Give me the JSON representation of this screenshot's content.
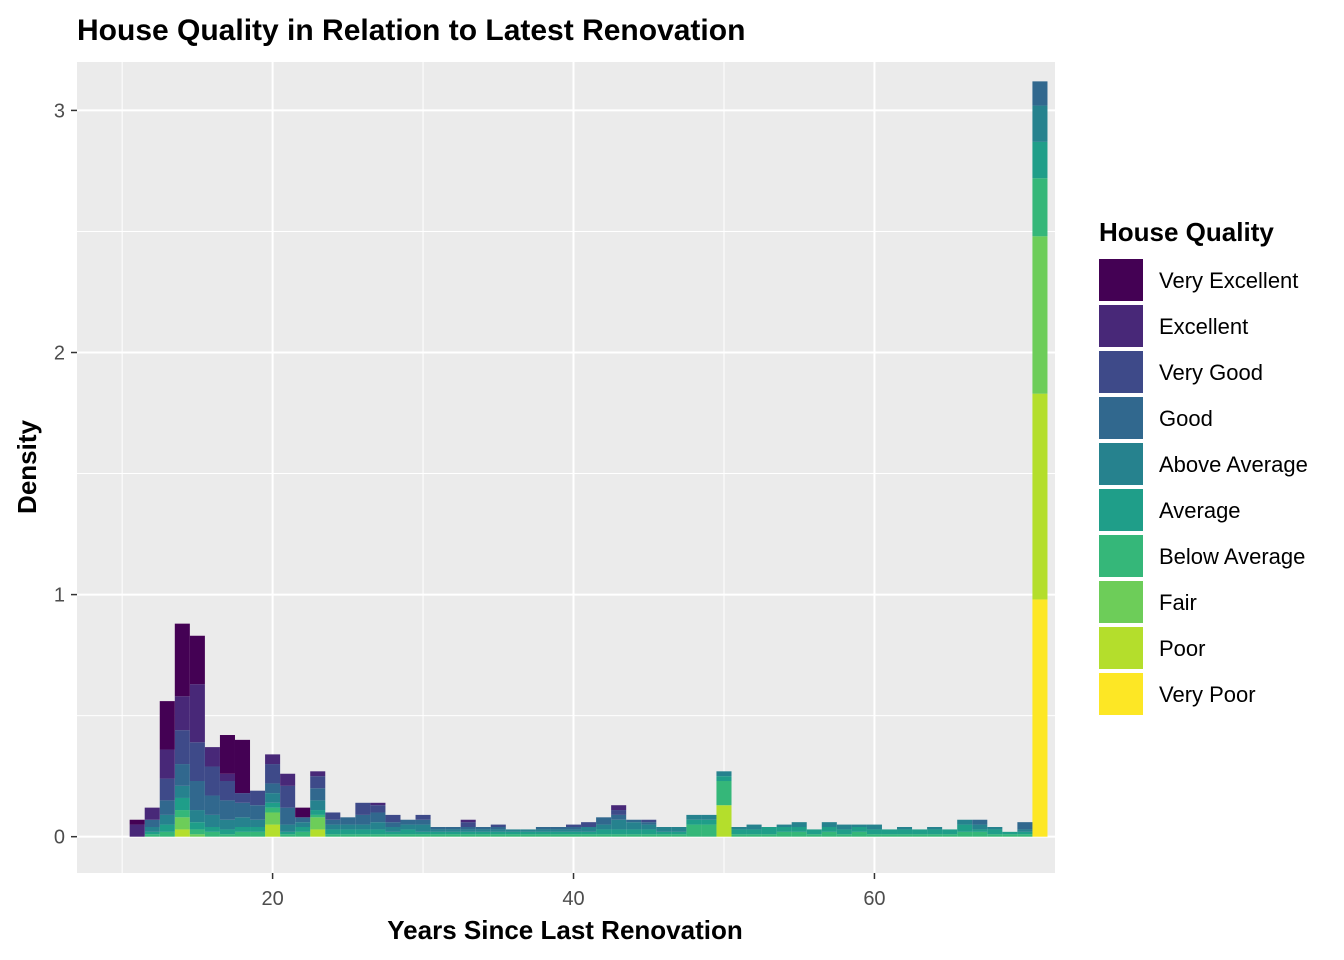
{
  "chart_data": {
    "type": "bar",
    "stacking": "stacked",
    "title": "House Quality in Relation to Latest Renovation",
    "xlabel": "Years Since Last Renovation",
    "ylabel": "Density",
    "xlim": [
      7,
      72
    ],
    "ylim": [
      -0.15,
      3.2
    ],
    "x_ticks": [
      20,
      40,
      60
    ],
    "y_ticks": [
      0,
      1,
      2,
      3
    ],
    "bin_width": 1,
    "grid": true,
    "background": "#EBEBEB",
    "legend": {
      "title": "House Quality",
      "position": "right"
    },
    "series": [
      {
        "name": "Very Excellent",
        "color": "#440154",
        "bins": [
          [
            11,
            0.02
          ],
          [
            13,
            0.2
          ],
          [
            14,
            0.3
          ],
          [
            15,
            0.2
          ],
          [
            17,
            0.16
          ],
          [
            18,
            0.22
          ],
          [
            22,
            0.04
          ]
        ]
      },
      {
        "name": "Excellent",
        "color": "#482878",
        "bins": [
          [
            11,
            0.05
          ],
          [
            12,
            0.05
          ],
          [
            13,
            0.12
          ],
          [
            14,
            0.14
          ],
          [
            15,
            0.24
          ],
          [
            16,
            0.08
          ],
          [
            17,
            0.03
          ],
          [
            20,
            0.04
          ],
          [
            21,
            0.05
          ],
          [
            23,
            0.02
          ],
          [
            27,
            0.01
          ],
          [
            33,
            0.01
          ],
          [
            43,
            0.02
          ]
        ]
      },
      {
        "name": "Very Good",
        "color": "#3E4A89",
        "bins": [
          [
            13,
            0.09
          ],
          [
            14,
            0.14
          ],
          [
            15,
            0.16
          ],
          [
            16,
            0.12
          ],
          [
            17,
            0.08
          ],
          [
            18,
            0.04
          ],
          [
            19,
            0.06
          ],
          [
            20,
            0.08
          ],
          [
            21,
            0.09
          ],
          [
            23,
            0.05
          ],
          [
            24,
            0.03
          ],
          [
            26,
            0.05
          ],
          [
            27,
            0.03
          ],
          [
            28,
            0.03
          ],
          [
            30,
            0.02
          ],
          [
            33,
            0.02
          ],
          [
            35,
            0.01
          ],
          [
            40,
            0.01
          ],
          [
            41,
            0.02
          ],
          [
            43,
            0.02
          ],
          [
            45,
            0.01
          ]
        ]
      },
      {
        "name": "Good",
        "color": "#31688E",
        "bins": [
          [
            12,
            0.03
          ],
          [
            13,
            0.06
          ],
          [
            14,
            0.09
          ],
          [
            15,
            0.12
          ],
          [
            16,
            0.08
          ],
          [
            17,
            0.08
          ],
          [
            18,
            0.06
          ],
          [
            19,
            0.06
          ],
          [
            20,
            0.04
          ],
          [
            21,
            0.07
          ],
          [
            22,
            0.02
          ],
          [
            23,
            0.05
          ],
          [
            24,
            0.02
          ],
          [
            25,
            0.03
          ],
          [
            26,
            0.04
          ],
          [
            27,
            0.04
          ],
          [
            28,
            0.02
          ],
          [
            29,
            0.02
          ],
          [
            30,
            0.02
          ],
          [
            31,
            0.01
          ],
          [
            32,
            0.01
          ],
          [
            33,
            0.01
          ],
          [
            34,
            0.01
          ],
          [
            35,
            0.01
          ],
          [
            38,
            0.01
          ],
          [
            39,
            0.01
          ],
          [
            40,
            0.01
          ],
          [
            42,
            0.03
          ],
          [
            43,
            0.02
          ],
          [
            44,
            0.01
          ],
          [
            45,
            0.01
          ],
          [
            67,
            0.02
          ],
          [
            70,
            0.03
          ],
          [
            71,
            0.1
          ]
        ]
      },
      {
        "name": "Above Average",
        "color": "#26828E",
        "bins": [
          [
            12,
            0.02
          ],
          [
            13,
            0.04
          ],
          [
            14,
            0.05
          ],
          [
            15,
            0.05
          ],
          [
            16,
            0.05
          ],
          [
            17,
            0.04
          ],
          [
            18,
            0.04
          ],
          [
            19,
            0.03
          ],
          [
            20,
            0.04
          ],
          [
            21,
            0.03
          ],
          [
            22,
            0.02
          ],
          [
            23,
            0.04
          ],
          [
            24,
            0.02
          ],
          [
            25,
            0.02
          ],
          [
            26,
            0.02
          ],
          [
            27,
            0.03
          ],
          [
            28,
            0.02
          ],
          [
            29,
            0.02
          ],
          [
            30,
            0.03
          ],
          [
            31,
            0.01
          ],
          [
            32,
            0.01
          ],
          [
            33,
            0.01
          ],
          [
            34,
            0.01
          ],
          [
            35,
            0.01
          ],
          [
            36,
            0.01
          ],
          [
            37,
            0.01
          ],
          [
            38,
            0.01
          ],
          [
            39,
            0.01
          ],
          [
            40,
            0.01
          ],
          [
            41,
            0.02
          ],
          [
            42,
            0.02
          ],
          [
            43,
            0.04
          ],
          [
            44,
            0.03
          ],
          [
            45,
            0.02
          ],
          [
            46,
            0.02
          ],
          [
            47,
            0.02
          ],
          [
            48,
            0.02
          ],
          [
            49,
            0.02
          ],
          [
            50,
            0.02
          ],
          [
            51,
            0.01
          ],
          [
            52,
            0.02
          ],
          [
            54,
            0.01
          ],
          [
            55,
            0.02
          ],
          [
            57,
            0.02
          ],
          [
            58,
            0.02
          ],
          [
            59,
            0.01
          ],
          [
            60,
            0.02
          ],
          [
            62,
            0.01
          ],
          [
            64,
            0.01
          ],
          [
            66,
            0.02
          ],
          [
            67,
            0.02
          ],
          [
            68,
            0.01
          ],
          [
            70,
            0.01
          ],
          [
            71,
            0.15
          ]
        ]
      },
      {
        "name": "Average",
        "color": "#1F9E89",
        "bins": [
          [
            12,
            0.01
          ],
          [
            13,
            0.03
          ],
          [
            14,
            0.05
          ],
          [
            15,
            0.03
          ],
          [
            16,
            0.02
          ],
          [
            17,
            0.02
          ],
          [
            18,
            0.02
          ],
          [
            19,
            0.02
          ],
          [
            20,
            0.02
          ],
          [
            21,
            0.01
          ],
          [
            22,
            0.02
          ],
          [
            23,
            0.02
          ],
          [
            24,
            0.02
          ],
          [
            25,
            0.02
          ],
          [
            26,
            0.02
          ],
          [
            27,
            0.02
          ],
          [
            28,
            0.01
          ],
          [
            29,
            0.02
          ],
          [
            30,
            0.01
          ],
          [
            31,
            0.01
          ],
          [
            32,
            0.01
          ],
          [
            33,
            0.01
          ],
          [
            34,
            0.01
          ],
          [
            35,
            0.01
          ],
          [
            36,
            0.01
          ],
          [
            37,
            0.01
          ],
          [
            38,
            0.01
          ],
          [
            39,
            0.01
          ],
          [
            40,
            0.01
          ],
          [
            41,
            0.01
          ],
          [
            42,
            0.02
          ],
          [
            43,
            0.02
          ],
          [
            44,
            0.02
          ],
          [
            45,
            0.02
          ],
          [
            46,
            0.01
          ],
          [
            47,
            0.01
          ],
          [
            48,
            0.02
          ],
          [
            49,
            0.02
          ],
          [
            50,
            0.02
          ],
          [
            51,
            0.02
          ],
          [
            52,
            0.02
          ],
          [
            53,
            0.03
          ],
          [
            54,
            0.02
          ],
          [
            55,
            0.02
          ],
          [
            56,
            0.02
          ],
          [
            57,
            0.02
          ],
          [
            58,
            0.02
          ],
          [
            59,
            0.02
          ],
          [
            60,
            0.02
          ],
          [
            61,
            0.02
          ],
          [
            62,
            0.02
          ],
          [
            63,
            0.02
          ],
          [
            64,
            0.02
          ],
          [
            65,
            0.02
          ],
          [
            66,
            0.03
          ],
          [
            67,
            0.01
          ],
          [
            68,
            0.02
          ],
          [
            69,
            0.01
          ],
          [
            70,
            0.01
          ],
          [
            71,
            0.15
          ]
        ]
      },
      {
        "name": "Below Average",
        "color": "#35B779",
        "bins": [
          [
            12,
            0.01
          ],
          [
            13,
            0.02
          ],
          [
            14,
            0.03
          ],
          [
            15,
            0.02
          ],
          [
            16,
            0.02
          ],
          [
            17,
            0.01
          ],
          [
            18,
            0.02
          ],
          [
            19,
            0.02
          ],
          [
            20,
            0.02
          ],
          [
            21,
            0.01
          ],
          [
            22,
            0.02
          ],
          [
            23,
            0.01
          ],
          [
            24,
            0.01
          ],
          [
            25,
            0.01
          ],
          [
            26,
            0.01
          ],
          [
            27,
            0.01
          ],
          [
            28,
            0.01
          ],
          [
            29,
            0.01
          ],
          [
            30,
            0.01
          ],
          [
            31,
            0.01
          ],
          [
            32,
            0.01
          ],
          [
            33,
            0.01
          ],
          [
            34,
            0.01
          ],
          [
            35,
            0.01
          ],
          [
            36,
            0.01
          ],
          [
            37,
            0.01
          ],
          [
            38,
            0.01
          ],
          [
            39,
            0.01
          ],
          [
            40,
            0.01
          ],
          [
            41,
            0.01
          ],
          [
            42,
            0.01
          ],
          [
            43,
            0.01
          ],
          [
            44,
            0.01
          ],
          [
            45,
            0.01
          ],
          [
            46,
            0.01
          ],
          [
            47,
            0.01
          ],
          [
            48,
            0.05
          ],
          [
            49,
            0.05
          ],
          [
            50,
            0.1
          ],
          [
            51,
            0.01
          ],
          [
            52,
            0.01
          ],
          [
            53,
            0.01
          ],
          [
            54,
            0.02
          ],
          [
            55,
            0.02
          ],
          [
            56,
            0.01
          ],
          [
            57,
            0.02
          ],
          [
            58,
            0.01
          ],
          [
            59,
            0.02
          ],
          [
            60,
            0.01
          ],
          [
            61,
            0.01
          ],
          [
            62,
            0.01
          ],
          [
            63,
            0.01
          ],
          [
            64,
            0.01
          ],
          [
            65,
            0.01
          ],
          [
            66,
            0.02
          ],
          [
            67,
            0.02
          ],
          [
            68,
            0.01
          ],
          [
            69,
            0.01
          ],
          [
            70,
            0.01
          ],
          [
            71,
            0.24
          ]
        ]
      },
      {
        "name": "Fair",
        "color": "#6DCD59",
        "bins": [
          [
            14,
            0.05
          ],
          [
            15,
            0.01
          ],
          [
            20,
            0.05
          ],
          [
            23,
            0.05
          ],
          [
            71,
            0.65
          ]
        ]
      },
      {
        "name": "Poor",
        "color": "#B4DE2C",
        "bins": [
          [
            14,
            0.03
          ],
          [
            20,
            0.05
          ],
          [
            23,
            0.03
          ],
          [
            50,
            0.13
          ],
          [
            71,
            0.85
          ]
        ]
      },
      {
        "name": "Very Poor",
        "color": "#FDE725",
        "bins": [
          [
            71,
            0.98
          ]
        ]
      }
    ]
  }
}
